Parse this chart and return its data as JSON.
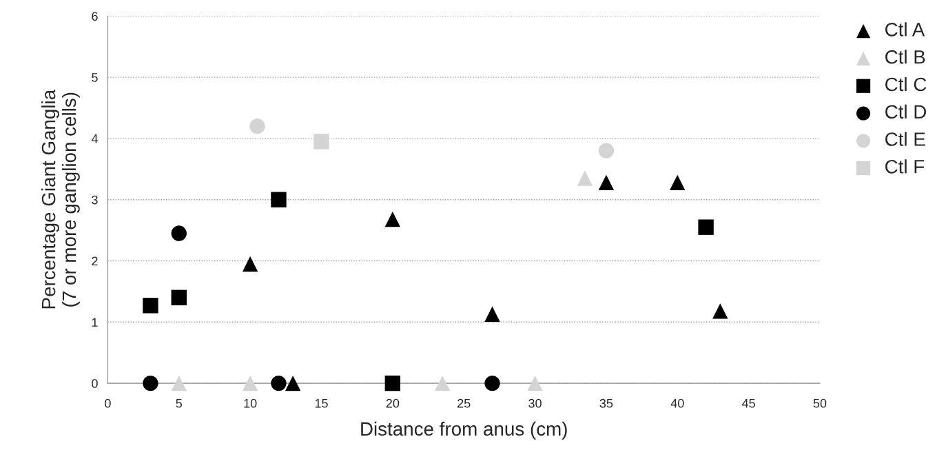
{
  "chart_data": {
    "type": "scatter",
    "xlabel": "Distance from anus (cm)",
    "ylabel": "Percentage Giant Ganglia\n(7 or more ganglion cells)",
    "xlim": [
      0,
      50
    ],
    "ylim": [
      0,
      6
    ],
    "xticks": [
      0,
      5,
      10,
      15,
      20,
      25,
      30,
      35,
      40,
      45,
      50
    ],
    "yticks": [
      0,
      1,
      2,
      3,
      4,
      5,
      6
    ],
    "grid": "y",
    "legend": "right",
    "series": [
      {
        "name": "Ctl A",
        "color": "#000000",
        "marker": "triangle",
        "x": [
          10,
          13,
          20,
          27,
          35,
          40,
          43
        ],
        "values": [
          1.95,
          0,
          2.68,
          1.13,
          3.28,
          3.28,
          1.18
        ]
      },
      {
        "name": "Ctl B",
        "color": "#d4d4d4",
        "marker": "triangle",
        "x": [
          5,
          10,
          23.5,
          30,
          33.5
        ],
        "values": [
          0,
          0,
          0,
          0,
          3.35
        ]
      },
      {
        "name": "Ctl C",
        "color": "#000000",
        "marker": "square",
        "x": [
          3,
          5,
          12,
          20,
          42
        ],
        "values": [
          1.27,
          1.4,
          3.0,
          0,
          2.55
        ]
      },
      {
        "name": "Ctl D",
        "color": "#000000",
        "marker": "circle",
        "x": [
          3,
          5,
          12,
          27
        ],
        "values": [
          0,
          2.45,
          0,
          0
        ]
      },
      {
        "name": "Ctl E",
        "color": "#d4d4d4",
        "marker": "circle",
        "x": [
          10.5,
          35
        ],
        "values": [
          4.2,
          3.8
        ]
      },
      {
        "name": "Ctl F",
        "color": "#d4d4d4",
        "marker": "square",
        "x": [
          15
        ],
        "values": [
          3.95
        ]
      }
    ]
  }
}
